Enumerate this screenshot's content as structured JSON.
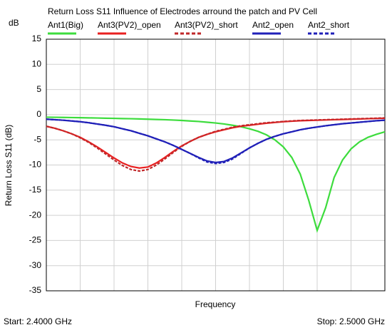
{
  "chart_data": {
    "type": "line",
    "title": "Return Loss S11 Influence of Electrodes arround the patch and PV Cell",
    "y_unit": "dB",
    "ylabel": "Return Loss S11 (dB)",
    "xlabel": "Frequency",
    "start_label": "Start: 2.4000 GHz",
    "stop_label": "Stop: 2.5000 GHz",
    "xlim": [
      2.4,
      2.5
    ],
    "xticks": [
      2.4,
      2.41,
      2.42,
      2.43,
      2.44,
      2.45,
      2.46,
      2.47,
      2.48,
      2.49,
      2.5
    ],
    "ylim": [
      -35,
      15
    ],
    "yticks": [
      15,
      10,
      5,
      0,
      -5,
      -10,
      -15,
      -20,
      -25,
      -30,
      -35
    ],
    "grid": true,
    "legend": "top",
    "x": [
      2.4,
      2.4025,
      2.405,
      2.4075,
      2.41,
      2.4125,
      2.415,
      2.4175,
      2.42,
      2.4225,
      2.425,
      2.4275,
      2.43,
      2.4325,
      2.435,
      2.4375,
      2.44,
      2.4425,
      2.445,
      2.4475,
      2.45,
      2.4525,
      2.455,
      2.4575,
      2.46,
      2.4625,
      2.465,
      2.4675,
      2.47,
      2.4725,
      2.475,
      2.4775,
      2.48,
      2.4825,
      2.485,
      2.4875,
      2.49,
      2.4925,
      2.495,
      2.4975,
      2.5
    ],
    "series": [
      {
        "name": "Ant1(Big)",
        "color": "#3ddc3d",
        "dash": false,
        "values": [
          -0.5,
          -0.52,
          -0.55,
          -0.57,
          -0.6,
          -0.63,
          -0.66,
          -0.7,
          -0.73,
          -0.77,
          -0.8,
          -0.85,
          -0.9,
          -0.95,
          -1.0,
          -1.07,
          -1.15,
          -1.25,
          -1.35,
          -1.5,
          -1.65,
          -1.85,
          -2.1,
          -2.4,
          -2.8,
          -3.3,
          -4.0,
          -5.0,
          -6.4,
          -8.5,
          -11.8,
          -17.0,
          -23.0,
          -18.5,
          -12.5,
          -9.0,
          -6.8,
          -5.4,
          -4.5,
          -3.9,
          -3.4
        ]
      },
      {
        "name": "Ant3(PV2)_open",
        "color": "#e82020",
        "dash": false,
        "values": [
          -2.3,
          -2.7,
          -3.2,
          -3.8,
          -4.5,
          -5.4,
          -6.4,
          -7.5,
          -8.6,
          -9.6,
          -10.3,
          -10.6,
          -10.4,
          -9.6,
          -8.5,
          -7.3,
          -6.2,
          -5.3,
          -4.5,
          -3.9,
          -3.4,
          -3.0,
          -2.6,
          -2.3,
          -2.1,
          -1.9,
          -1.7,
          -1.55,
          -1.4,
          -1.3,
          -1.2,
          -1.15,
          -1.1,
          -1.05,
          -1.0,
          -0.95,
          -0.9,
          -0.85,
          -0.8,
          -0.75,
          -0.7
        ]
      },
      {
        "name": "Ant3(PV2)_short",
        "color": "#c0282a",
        "dash": true,
        "values": [
          -2.3,
          -2.7,
          -3.2,
          -3.8,
          -4.6,
          -5.5,
          -6.6,
          -7.8,
          -9.0,
          -10.1,
          -10.9,
          -11.2,
          -10.9,
          -10.0,
          -8.8,
          -7.5,
          -6.3,
          -5.3,
          -4.5,
          -3.9,
          -3.3,
          -2.9,
          -2.5,
          -2.2,
          -2.0,
          -1.8,
          -1.6,
          -1.5,
          -1.35,
          -1.25,
          -1.15,
          -1.1,
          -1.05,
          -1.0,
          -0.95,
          -0.9,
          -0.85,
          -0.8,
          -0.75,
          -0.7,
          -0.65
        ]
      },
      {
        "name": "Ant2_open",
        "color": "#2020b8",
        "dash": false,
        "values": [
          -0.9,
          -1.0,
          -1.1,
          -1.25,
          -1.4,
          -1.6,
          -1.85,
          -2.1,
          -2.4,
          -2.8,
          -3.2,
          -3.7,
          -4.2,
          -4.8,
          -5.4,
          -6.1,
          -6.9,
          -7.7,
          -8.5,
          -9.2,
          -9.5,
          -9.3,
          -8.6,
          -7.6,
          -6.6,
          -5.7,
          -4.9,
          -4.3,
          -3.8,
          -3.4,
          -3.0,
          -2.7,
          -2.45,
          -2.2,
          -2.0,
          -1.8,
          -1.65,
          -1.5,
          -1.35,
          -1.2,
          -1.1
        ]
      },
      {
        "name": "Ant2_short",
        "color": "#2020b8",
        "dash": true,
        "values": [
          -0.9,
          -1.0,
          -1.1,
          -1.25,
          -1.4,
          -1.6,
          -1.85,
          -2.1,
          -2.4,
          -2.8,
          -3.2,
          -3.7,
          -4.2,
          -4.8,
          -5.4,
          -6.1,
          -6.9,
          -7.7,
          -8.6,
          -9.4,
          -9.7,
          -9.5,
          -8.8,
          -7.7,
          -6.6,
          -5.7,
          -4.9,
          -4.3,
          -3.8,
          -3.4,
          -3.0,
          -2.7,
          -2.45,
          -2.2,
          -2.0,
          -1.8,
          -1.65,
          -1.5,
          -1.35,
          -1.2,
          -1.1
        ]
      }
    ]
  }
}
